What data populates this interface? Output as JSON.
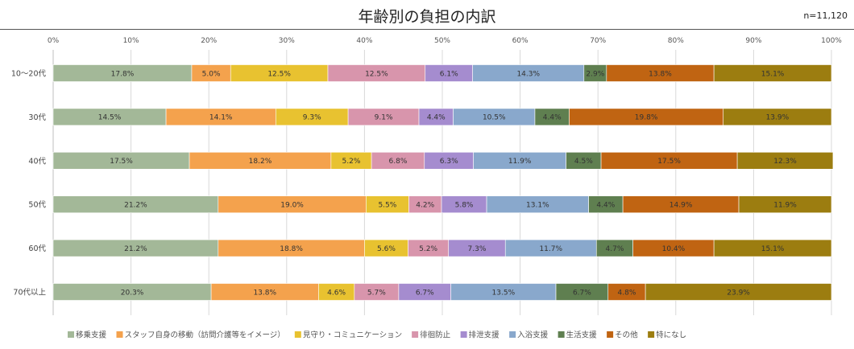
{
  "sample_size": "n=11,120",
  "chart_data": {
    "type": "bar",
    "orientation": "horizontal",
    "stacked": "percent",
    "title": "年齢別の負担の内訳",
    "xlim": [
      0,
      100
    ],
    "x_ticks": [
      "0%",
      "10%",
      "20%",
      "30%",
      "40%",
      "50%",
      "60%",
      "70%",
      "80%",
      "90%",
      "100%"
    ],
    "categories": [
      "10～20代",
      "30代",
      "40代",
      "50代",
      "60代",
      "70代以上"
    ],
    "series": [
      {
        "name": "移乗支援",
        "color": "#a3b898",
        "values": [
          17.8,
          14.5,
          17.5,
          21.2,
          21.2,
          20.3
        ],
        "labels": [
          "17.8%",
          "14.5%",
          "17.5%",
          "21.2%",
          "21.2%",
          "20.3%"
        ]
      },
      {
        "name": "スタッフ自身の移動（訪問介護等をイメージ）",
        "color": "#f4a24d",
        "values": [
          5.0,
          14.1,
          18.2,
          19.0,
          18.8,
          13.8
        ],
        "labels": [
          "5.0%",
          "14.1%",
          "18.2%",
          "19.0%",
          "18.8%",
          "13.8%"
        ]
      },
      {
        "name": "見守り・コミュニケーション",
        "color": "#e8c230",
        "values": [
          12.5,
          9.3,
          5.2,
          5.5,
          5.6,
          4.6
        ],
        "labels": [
          "12.5%",
          "9.3%",
          "5.2%",
          "5.5%",
          "5.6%",
          "4.6%"
        ]
      },
      {
        "name": "徘徊防止",
        "color": "#d895ac",
        "values": [
          12.5,
          9.1,
          6.8,
          4.2,
          5.2,
          5.7
        ],
        "labels": [
          "12.5%",
          "9.1%",
          "6.8%",
          "4.2%",
          "5.2%",
          "5.7%"
        ]
      },
      {
        "name": "排泄支援",
        "color": "#a58ccf",
        "values": [
          6.1,
          4.4,
          6.3,
          5.8,
          7.3,
          6.7
        ],
        "labels": [
          "6.1%",
          "4.4%",
          "6.3%",
          "5.8%",
          "7.3%",
          "6.7%"
        ]
      },
      {
        "name": "入浴支援",
        "color": "#89a8cc",
        "values": [
          14.3,
          10.5,
          11.9,
          13.1,
          11.7,
          13.5
        ],
        "labels": [
          "14.3%",
          "10.5%",
          "11.9%",
          "13.1%",
          "11.7%",
          "13.5%"
        ]
      },
      {
        "name": "生活支援",
        "color": "#5f7f50",
        "values": [
          2.9,
          4.4,
          4.5,
          4.4,
          4.7,
          6.7
        ],
        "labels": [
          "2.9%",
          "4.4%",
          "4.5%",
          "4.4%",
          "4.7%",
          "6.7%"
        ]
      },
      {
        "name": "その他",
        "color": "#c06412",
        "values": [
          13.8,
          19.8,
          17.5,
          14.9,
          10.4,
          4.8
        ],
        "labels": [
          "13.8%",
          "19.8%",
          "17.5%",
          "14.9%",
          "10.4%",
          "4.8%"
        ]
      },
      {
        "name": "特になし",
        "color": "#9c7d10",
        "values": [
          15.1,
          13.9,
          12.3,
          11.9,
          15.1,
          23.9
        ],
        "labels": [
          "15.1%",
          "13.9%",
          "12.3%",
          "11.9%",
          "15.1%",
          "23.9%"
        ]
      }
    ]
  }
}
